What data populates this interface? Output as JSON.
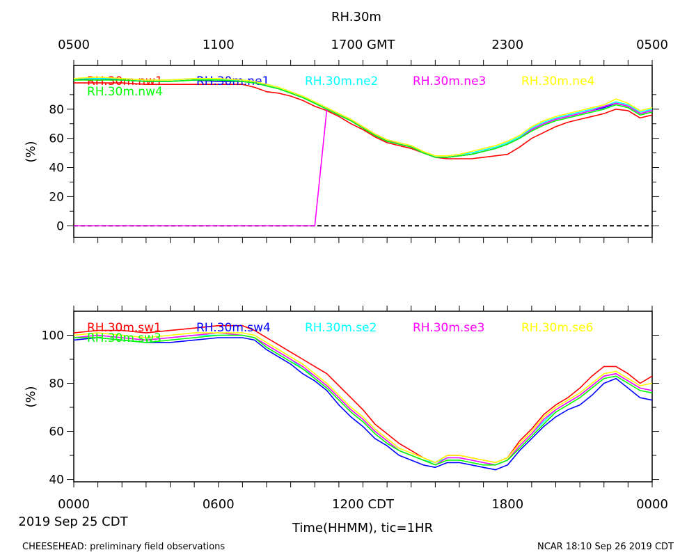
{
  "title": "RH.30m",
  "top_axis": {
    "ticks": [
      "0500",
      "1100",
      "1700 GMT",
      "2300",
      "0500"
    ]
  },
  "bottom_axis": {
    "ticks": [
      "0000",
      "0600",
      "1200 CDT",
      "1800",
      "0000"
    ],
    "xlabel": "Time(HHMM), tic=1HR",
    "date": "2019 Sep 25 CDT"
  },
  "footer": {
    "left": "CHEESEHEAD: preliminary field observations",
    "right": "NCAR 18:10 Sep 26 2019 CDT"
  },
  "chart_data": [
    {
      "type": "line",
      "panel": "top",
      "ylabel": "(%)",
      "xlim": [
        0,
        24
      ],
      "ylim": [
        -8,
        110
      ],
      "yticks": [
        0,
        20,
        40,
        60,
        80
      ],
      "reference_line": 0,
      "x": [
        0,
        1,
        2,
        3,
        4,
        5,
        6,
        7,
        7.5,
        8,
        8.5,
        9,
        9.5,
        10,
        10.5,
        11,
        11.5,
        12,
        12.5,
        13,
        13.5,
        14,
        14.5,
        15,
        15.5,
        16,
        16.5,
        17,
        17.5,
        18,
        18.5,
        19,
        19.5,
        20,
        20.5,
        21,
        21.5,
        22,
        22.5,
        23,
        23.5,
        24
      ],
      "series": [
        {
          "name": "RH.30m.nw1",
          "color": "#ff0000",
          "values": [
            98,
            98,
            98,
            97,
            97,
            97,
            97,
            97,
            95,
            92,
            91,
            89,
            86,
            82,
            79,
            75,
            70,
            66,
            61,
            57,
            55,
            53,
            50,
            47,
            46,
            46,
            46,
            47,
            48,
            49,
            54,
            60,
            64,
            68,
            71,
            73,
            75,
            77,
            80,
            79,
            74,
            76
          ]
        },
        {
          "name": "RH.30m.ne1",
          "color": "#0000ff",
          "values": [
            100,
            101,
            100,
            99,
            99,
            100,
            99,
            99,
            98,
            96,
            94,
            91,
            88,
            84,
            80,
            76,
            72,
            67,
            62,
            58,
            56,
            54,
            50,
            47,
            47,
            48,
            49,
            51,
            53,
            56,
            60,
            66,
            70,
            73,
            75,
            77,
            79,
            81,
            84,
            82,
            77,
            79
          ]
        },
        {
          "name": "RH.30m.ne2",
          "color": "#00ffff",
          "values": [
            101,
            101,
            101,
            100,
            100,
            101,
            100,
            100,
            99,
            97,
            95,
            92,
            89,
            85,
            81,
            77,
            73,
            68,
            63,
            59,
            57,
            55,
            51,
            48,
            48,
            49,
            50,
            52,
            54,
            57,
            61,
            67,
            71,
            74,
            76,
            78,
            80,
            82,
            85,
            83,
            78,
            80
          ]
        },
        {
          "name": "RH.30m.ne3",
          "color": "#ff00ff",
          "values": [
            0,
            0,
            0,
            0,
            0,
            0,
            0,
            0,
            0,
            0,
            0,
            0,
            0,
            0,
            80,
            76,
            72,
            68,
            63,
            59,
            56,
            54,
            50,
            47,
            47,
            48,
            49,
            51,
            53,
            56,
            60,
            66,
            70,
            73,
            75,
            77,
            79,
            82,
            84,
            82,
            77,
            79
          ]
        },
        {
          "name": "RH.30m.ne4",
          "color": "#ffff00",
          "values": [
            101,
            102,
            101,
            100,
            100,
            101,
            101,
            100,
            99,
            97,
            95,
            92,
            89,
            85,
            81,
            77,
            73,
            68,
            63,
            59,
            57,
            55,
            51,
            48,
            48,
            49,
            51,
            53,
            55,
            58,
            62,
            68,
            72,
            75,
            77,
            79,
            81,
            83,
            87,
            84,
            79,
            81
          ]
        },
        {
          "name": "RH.30m.nw4",
          "color": "#00ff00",
          "values": [
            100,
            100,
            100,
            99,
            99,
            100,
            100,
            99,
            98,
            96,
            94,
            91,
            88,
            84,
            80,
            76,
            72,
            67,
            62,
            58,
            56,
            54,
            50,
            47,
            47,
            48,
            49,
            51,
            53,
            56,
            60,
            65,
            69,
            72,
            74,
            76,
            78,
            80,
            83,
            81,
            76,
            78
          ]
        }
      ]
    },
    {
      "type": "line",
      "panel": "bottom",
      "ylabel": "(%)",
      "xlim": [
        0,
        24
      ],
      "ylim": [
        39,
        110
      ],
      "yticks": [
        40,
        60,
        80,
        100
      ],
      "x": [
        0,
        1,
        2,
        3,
        4,
        5,
        6,
        7,
        7.5,
        8,
        8.5,
        9,
        9.5,
        10,
        10.5,
        11,
        11.5,
        12,
        12.5,
        13,
        13.5,
        14,
        14.5,
        15,
        15.5,
        16,
        16.5,
        17,
        17.5,
        18,
        18.5,
        19,
        19.5,
        20,
        20.5,
        21,
        21.5,
        22,
        22.5,
        23,
        23.5,
        24
      ],
      "series": [
        {
          "name": "RH.30m.sw1",
          "color": "#ff0000",
          "values": [
            101,
            102,
            102,
            101,
            102,
            103,
            104,
            104,
            102,
            99,
            96,
            93,
            90,
            87,
            84,
            79,
            74,
            69,
            63,
            59,
            55,
            52,
            49,
            47,
            50,
            50,
            49,
            48,
            47,
            49,
            56,
            61,
            67,
            71,
            74,
            78,
            83,
            87,
            87,
            84,
            80,
            83
          ]
        },
        {
          "name": "RH.30m.sw4",
          "color": "#0000ff",
          "values": [
            98,
            99,
            98,
            97,
            97,
            98,
            99,
            99,
            98,
            94,
            91,
            88,
            84,
            81,
            77,
            71,
            66,
            62,
            57,
            54,
            50,
            48,
            46,
            45,
            47,
            47,
            46,
            45,
            44,
            46,
            52,
            57,
            62,
            66,
            69,
            71,
            75,
            80,
            82,
            78,
            74,
            73
          ]
        },
        {
          "name": "RH.30m.se2",
          "color": "#00ffff",
          "values": [
            99,
            100,
            99,
            98,
            99,
            100,
            100,
            100,
            99,
            96,
            93,
            90,
            86,
            83,
            79,
            74,
            69,
            65,
            60,
            56,
            52,
            50,
            48,
            47,
            49,
            49,
            48,
            47,
            46,
            48,
            54,
            59,
            64,
            69,
            72,
            75,
            79,
            83,
            84,
            81,
            78,
            77
          ]
        },
        {
          "name": "RH.30m.se3",
          "color": "#ff00ff",
          "values": [
            99,
            100,
            99,
            98,
            99,
            100,
            101,
            100,
            99,
            96,
            93,
            90,
            87,
            83,
            79,
            74,
            69,
            65,
            60,
            56,
            52,
            50,
            48,
            46,
            49,
            49,
            48,
            47,
            46,
            48,
            54,
            59,
            65,
            69,
            72,
            75,
            79,
            83,
            84,
            81,
            78,
            77
          ]
        },
        {
          "name": "RH.30m.se6",
          "color": "#ffff00",
          "values": [
            100,
            101,
            100,
            99,
            100,
            101,
            101,
            101,
            100,
            97,
            94,
            91,
            88,
            84,
            80,
            75,
            70,
            66,
            61,
            57,
            53,
            51,
            49,
            47,
            50,
            50,
            49,
            48,
            47,
            49,
            55,
            60,
            66,
            70,
            73,
            76,
            80,
            84,
            85,
            82,
            79,
            80
          ]
        },
        {
          "name": "RH.30m.sw3",
          "color": "#00ff00",
          "values": [
            99,
            99,
            98,
            97,
            98,
            99,
            100,
            100,
            99,
            95,
            92,
            89,
            86,
            82,
            78,
            73,
            68,
            64,
            59,
            55,
            52,
            50,
            48,
            46,
            48,
            48,
            47,
            46,
            46,
            48,
            53,
            58,
            63,
            68,
            71,
            74,
            78,
            82,
            83,
            80,
            77,
            76
          ]
        }
      ]
    }
  ]
}
